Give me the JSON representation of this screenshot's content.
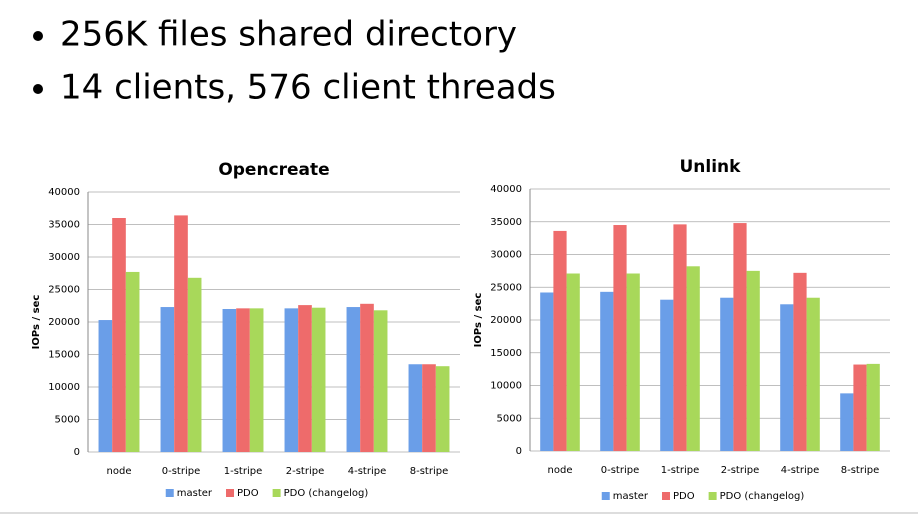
{
  "bullets": [
    "256K files shared directory",
    "14 clients, 576 client threads"
  ],
  "chart_data": [
    {
      "type": "bar",
      "title": "Opencreate",
      "y_label": "IOPs / sec",
      "categories": [
        "node",
        "0-stripe",
        "1-stripe",
        "2-stripe",
        "4-stripe",
        "8-stripe"
      ],
      "series": [
        {
          "name": "master",
          "color": "#6a9ee8",
          "values": [
            20300,
            22300,
            22000,
            22100,
            22300,
            13500
          ]
        },
        {
          "name": "PDO",
          "color": "#ee6b6b",
          "values": [
            36000,
            36400,
            22100,
            22600,
            22800,
            13500
          ]
        },
        {
          "name": "PDO (changelog)",
          "color": "#a8d85a",
          "values": [
            27700,
            26800,
            22100,
            22200,
            21800,
            13200
          ]
        }
      ],
      "ylim": [
        0,
        40000
      ],
      "yticks": [
        0,
        5000,
        10000,
        15000,
        20000,
        25000,
        30000,
        35000,
        40000
      ],
      "grid": true,
      "legend": "bottom"
    },
    {
      "type": "bar",
      "title": "Unlink",
      "y_label": "IOPs / sec",
      "categories": [
        "node",
        "0-stripe",
        "1-stripe",
        "2-stripe",
        "4-stripe",
        "8-stripe"
      ],
      "series": [
        {
          "name": "master",
          "color": "#6a9ee8",
          "values": [
            24200,
            24300,
            23100,
            23400,
            22400,
            8800
          ]
        },
        {
          "name": "PDO",
          "color": "#ee6b6b",
          "values": [
            33600,
            34500,
            34600,
            34800,
            27200,
            13200
          ]
        },
        {
          "name": "PDO (changelog)",
          "color": "#a8d85a",
          "values": [
            27100,
            27100,
            28200,
            27500,
            23400,
            13300
          ]
        }
      ],
      "ylim": [
        0,
        40000
      ],
      "yticks": [
        0,
        5000,
        10000,
        15000,
        20000,
        25000,
        30000,
        35000,
        40000
      ],
      "grid": true,
      "legend": "bottom"
    }
  ]
}
